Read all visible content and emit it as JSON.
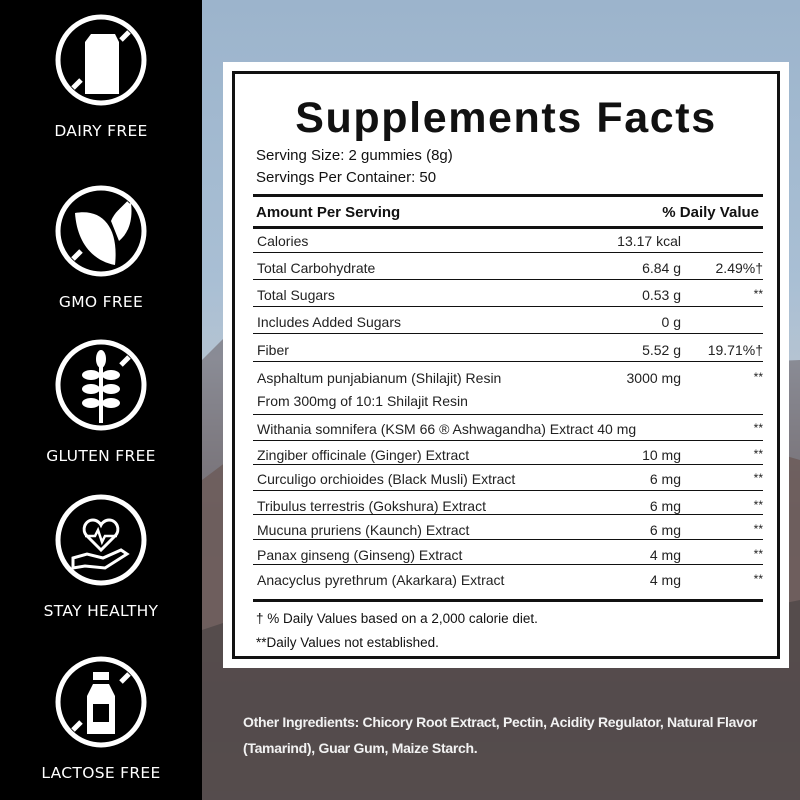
{
  "badges": [
    {
      "icon": "milk-carton-crossed-icon",
      "label": "DAIRY FREE"
    },
    {
      "icon": "leaf-crossed-icon",
      "label": "GMO FREE"
    },
    {
      "icon": "wheat-crossed-icon",
      "label": "GLUTEN FREE"
    },
    {
      "icon": "heart-hand-icon",
      "label": "STAY HEALTHY"
    },
    {
      "icon": "milk-bottle-crossed-icon",
      "label": "LACTOSE FREE"
    }
  ],
  "facts": {
    "title": "Supplements Facts",
    "serving_size": "Serving Size: 2 gummies (8g)",
    "servings_per_container": "Servings Per Container: 50",
    "header_amount": "Amount Per Serving",
    "header_dv": "% Daily Value",
    "rows": [
      {
        "name": "Calories",
        "amount": "13.17 kcal",
        "dv": ""
      },
      {
        "name": "Total Carbohydrate",
        "amount": "6.84 g",
        "dv": "2.49%†"
      },
      {
        "name": "Total Sugars",
        "amount": "0.53 g",
        "dv": "**"
      },
      {
        "name": "Includes Added Sugars",
        "amount": "0 g",
        "dv": ""
      },
      {
        "name": "Fiber",
        "amount": "5.52 g",
        "dv": "19.71%†"
      },
      {
        "name": "Asphaltum punjabianum (Shilajit) Resin",
        "amount": "3000 mg",
        "dv": "**",
        "sub": "From 300mg of 10:1 Shilajit Resin"
      },
      {
        "name": "Withania somnifera (KSM 66 ®  Ashwagandha) Extract 40 mg",
        "amount": "",
        "dv": "**"
      },
      {
        "name": "Zingiber officinale (Ginger) Extract",
        "amount": "10 mg",
        "dv": "**"
      },
      {
        "name": "Curculigo orchioides (Black Musli) Extract",
        "amount": "6 mg",
        "dv": "**"
      },
      {
        "name": "Tribulus terrestris (Gokshura) Extract",
        "amount": "6 mg",
        "dv": "**"
      },
      {
        "name": "Mucuna pruriens (Kaunch) Extract",
        "amount": "6 mg",
        "dv": "**"
      },
      {
        "name": "Panax ginseng (Ginseng) Extract",
        "amount": "4 mg",
        "dv": "**"
      },
      {
        "name": "Anacyclus pyrethrum (Akarkara) Extract",
        "amount": "4 mg",
        "dv": "**"
      }
    ],
    "footnote_1": "† % Daily Values based on a 2,000 calorie diet.",
    "footnote_2": "**Daily Values not established."
  },
  "other_ingredients": "Other Ingredients: Chicory Root Extract, Pectin, Acidity Regulator, Natural Flavor (Tamarind), Guar Gum, Maize Starch."
}
